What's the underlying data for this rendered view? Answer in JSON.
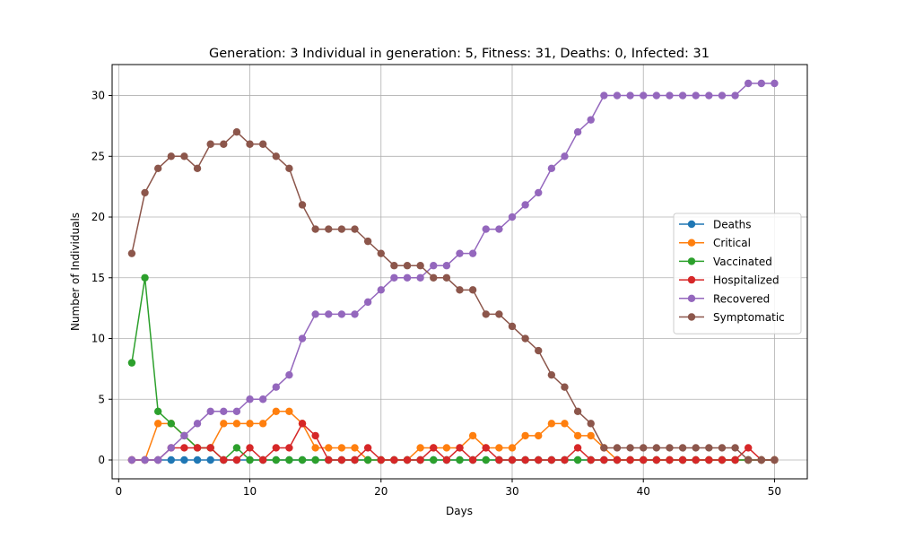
{
  "chart_data": {
    "type": "line",
    "title": "Generation: 3 Individual in generation: 5, Fitness: 31, Deaths: 0, Infected: 31",
    "xlabel": "Days",
    "ylabel": "Number of Individuals",
    "xlim": [
      -0.5,
      52.5
    ],
    "ylim": [
      -1.55,
      32.55
    ],
    "xticks": [
      0,
      10,
      20,
      30,
      40,
      50
    ],
    "yticks": [
      0,
      5,
      10,
      15,
      20,
      25,
      30
    ],
    "grid": true,
    "legend_position": "center-right",
    "x": [
      1,
      2,
      3,
      4,
      5,
      6,
      7,
      8,
      9,
      10,
      11,
      12,
      13,
      14,
      15,
      16,
      17,
      18,
      19,
      20,
      21,
      22,
      23,
      24,
      25,
      26,
      27,
      28,
      29,
      30,
      31,
      32,
      33,
      34,
      35,
      36,
      37,
      38,
      39,
      40,
      41,
      42,
      43,
      44,
      45,
      46,
      47,
      48,
      49,
      50
    ],
    "series": [
      {
        "name": "Deaths",
        "color": "#1f77b4",
        "values": [
          0,
          0,
          0,
          0,
          0,
          0,
          0,
          0,
          0,
          0,
          0,
          0,
          0,
          0,
          0,
          0,
          0,
          0,
          0,
          0,
          0,
          0,
          0,
          0,
          0,
          0,
          0,
          0,
          0,
          0,
          0,
          0,
          0,
          0,
          0,
          0,
          0,
          0,
          0,
          0,
          0,
          0,
          0,
          0,
          0,
          0,
          0,
          0,
          0,
          0
        ]
      },
      {
        "name": "Critical",
        "color": "#ff7f0e",
        "values": [
          0,
          0,
          3,
          3,
          2,
          1,
          1,
          3,
          3,
          3,
          3,
          4,
          4,
          3,
          1,
          1,
          1,
          1,
          0,
          0,
          0,
          0,
          1,
          1,
          1,
          1,
          2,
          1,
          1,
          1,
          2,
          2,
          3,
          3,
          2,
          2,
          1,
          0,
          0,
          0,
          0,
          0,
          0,
          0,
          0,
          0,
          0,
          0,
          0,
          0
        ]
      },
      {
        "name": "Vaccinated",
        "color": "#2ca02c",
        "values": [
          8,
          15,
          4,
          3,
          2,
          1,
          1,
          0,
          1,
          0,
          0,
          0,
          0,
          0,
          0,
          0,
          0,
          0,
          0,
          0,
          0,
          0,
          0,
          0,
          0,
          0,
          0,
          0,
          0,
          0,
          0,
          0,
          0,
          0,
          0,
          0,
          0,
          0,
          0,
          0,
          0,
          0,
          0,
          0,
          0,
          0,
          0,
          0,
          0,
          0
        ]
      },
      {
        "name": "Hospitalized",
        "color": "#d62728",
        "values": [
          0,
          0,
          0,
          1,
          1,
          1,
          1,
          0,
          0,
          1,
          0,
          1,
          1,
          3,
          2,
          0,
          0,
          0,
          1,
          0,
          0,
          0,
          0,
          1,
          0,
          1,
          0,
          1,
          0,
          0,
          0,
          0,
          0,
          0,
          1,
          0,
          0,
          0,
          0,
          0,
          0,
          0,
          0,
          0,
          0,
          0,
          0,
          1,
          0,
          0
        ]
      },
      {
        "name": "Recovered",
        "color": "#9467bd",
        "values": [
          0,
          0,
          0,
          1,
          2,
          3,
          4,
          4,
          4,
          5,
          5,
          6,
          7,
          10,
          12,
          12,
          12,
          12,
          13,
          14,
          15,
          15,
          15,
          16,
          16,
          17,
          17,
          19,
          19,
          20,
          21,
          22,
          24,
          25,
          27,
          28,
          30,
          30,
          30,
          30,
          30,
          30,
          30,
          30,
          30,
          30,
          30,
          31,
          31,
          31
        ]
      },
      {
        "name": "Symptomatic",
        "color": "#8c564b",
        "values": [
          17,
          22,
          24,
          25,
          25,
          24,
          26,
          26,
          27,
          26,
          26,
          25,
          24,
          21,
          19,
          19,
          19,
          19,
          18,
          17,
          16,
          16,
          16,
          15,
          15,
          14,
          14,
          12,
          12,
          11,
          10,
          9,
          7,
          6,
          4,
          3,
          1,
          1,
          1,
          1,
          1,
          1,
          1,
          1,
          1,
          1,
          1,
          0,
          0,
          0
        ]
      }
    ]
  }
}
